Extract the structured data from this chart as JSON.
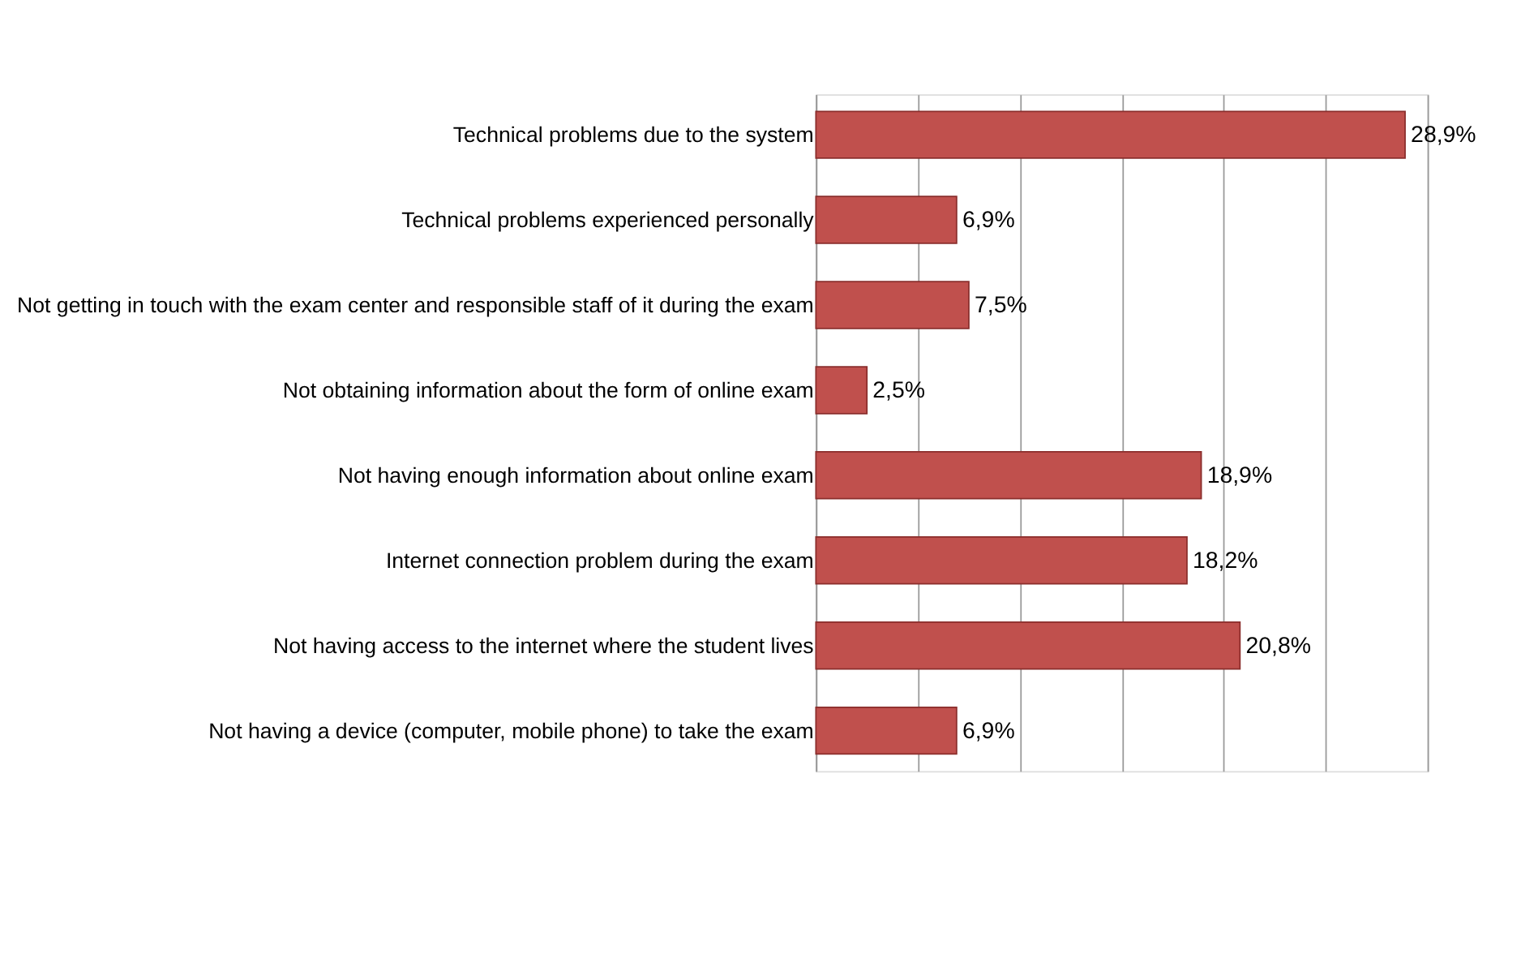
{
  "chart_data": {
    "type": "bar",
    "orientation": "horizontal",
    "categories": [
      "Technical problems due to the system",
      "Technical problems experienced personally",
      "Not getting in touch with the exam center and responsible staff of it during the exam",
      "Not obtaining information about the form of online exam",
      "Not having enough information about online exam",
      "Internet connection problem during the exam",
      "Not having access to the internet where the student lives",
      "Not having a device (computer, mobile phone) to take the exam"
    ],
    "values": [
      28.9,
      6.9,
      7.5,
      2.5,
      18.9,
      18.2,
      20.8,
      6.9
    ],
    "value_labels": [
      "28,9%",
      "6,9%",
      "7,5%",
      "2,5%",
      "18,9%",
      "18,2%",
      "20,8%",
      "6,9%"
    ],
    "color": "#c0504d",
    "xlim": [
      0,
      30
    ],
    "xticks": [
      {
        "value": 0,
        "label": null
      },
      {
        "value": 5,
        "label": null
      },
      {
        "value": 10,
        "label": null
      },
      {
        "value": 15,
        "label": null
      },
      {
        "value": 20,
        "label": null
      },
      {
        "value": 25,
        "label": null
      },
      {
        "value": 30,
        "label": null
      }
    ],
    "grid": "x",
    "tick_labels": "y"
  }
}
